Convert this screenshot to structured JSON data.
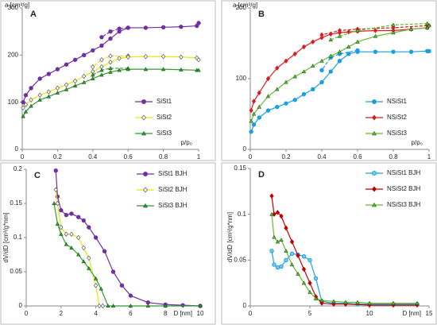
{
  "chart_data": [
    {
      "type": "line",
      "panel": "A",
      "ylabel": "a [cm³/g]",
      "xlabel": "p/p₀",
      "xlim": [
        0,
        1
      ],
      "xticks": [
        0,
        0.2,
        0.4,
        0.6,
        0.8,
        1
      ],
      "ylim": [
        0,
        300
      ],
      "yticks": [
        0,
        100,
        200,
        300
      ],
      "legend": "lower right",
      "series": [
        {
          "name": "SiSt1",
          "color": "#7030a0",
          "marker": "circle",
          "marker_fill": "#7030a0",
          "x": [
            0.005,
            0.02,
            0.05,
            0.1,
            0.15,
            0.2,
            0.25,
            0.3,
            0.35,
            0.4,
            0.45,
            0.5,
            0.55,
            0.6,
            0.7,
            0.8,
            0.9,
            0.99,
            1.0
          ],
          "values": [
            100,
            115,
            130,
            150,
            160,
            170,
            180,
            190,
            200,
            210,
            220,
            235,
            250,
            258,
            258,
            259,
            260,
            262,
            268
          ],
          "desorption": {
            "x": [
              0.6,
              0.55,
              0.5,
              0.45
            ],
            "values": [
              258,
              256,
              250,
              238
            ]
          }
        },
        {
          "name": "SiSt2",
          "color": "#e6e600",
          "marker": "diamond",
          "marker_fill": "#ffffff",
          "x": [
            0.005,
            0.02,
            0.05,
            0.1,
            0.15,
            0.2,
            0.25,
            0.3,
            0.35,
            0.4,
            0.45,
            0.5,
            0.55,
            0.6,
            0.7,
            0.8,
            0.9,
            0.99,
            1.0
          ],
          "values": [
            88,
            95,
            105,
            115,
            122,
            130,
            137,
            145,
            155,
            165,
            175,
            185,
            193,
            196,
            197,
            197,
            196,
            194,
            190
          ],
          "desorption": {
            "x": [
              0.6,
              0.5,
              0.45,
              0.4
            ],
            "values": [
              198,
              198,
              190,
              175
            ]
          }
        },
        {
          "name": "SiSt3",
          "color": "#339933",
          "marker": "triangle",
          "marker_fill": "#339933",
          "x": [
            0.005,
            0.02,
            0.05,
            0.1,
            0.15,
            0.2,
            0.25,
            0.3,
            0.35,
            0.4,
            0.45,
            0.5,
            0.55,
            0.6,
            0.7,
            0.8,
            0.9,
            0.99,
            1.0
          ],
          "values": [
            70,
            80,
            92,
            105,
            112,
            120,
            127,
            135,
            142,
            150,
            158,
            164,
            168,
            170,
            170,
            170,
            169,
            168,
            168
          ],
          "desorption": {
            "x": [
              0.6,
              0.5,
              0.45,
              0.4
            ],
            "values": [
              172,
              172,
              168,
              158
            ]
          }
        }
      ]
    },
    {
      "type": "line",
      "panel": "B",
      "ylabel": "a [cm³/g]",
      "xlabel": "p/p₀",
      "xlim": [
        0,
        1
      ],
      "xticks": [
        0,
        0.2,
        0.4,
        0.6,
        0.8,
        1
      ],
      "ylim": [
        0,
        200
      ],
      "yticks": [
        0,
        100,
        200
      ],
      "legend": "lower right",
      "series": [
        {
          "name": "NSiSt1",
          "color": "#1a9fdf",
          "marker": "circle",
          "marker_fill": "#1a9fdf",
          "x": [
            0.005,
            0.02,
            0.05,
            0.1,
            0.15,
            0.2,
            0.25,
            0.3,
            0.35,
            0.4,
            0.45,
            0.5,
            0.55,
            0.6,
            0.7,
            0.8,
            0.9,
            0.99,
            1.0
          ],
          "values": [
            25,
            35,
            45,
            55,
            60,
            65,
            70,
            78,
            85,
            95,
            110,
            125,
            135,
            138,
            138,
            138,
            138,
            139,
            139
          ],
          "desorption": {
            "x": [
              0.6,
              0.5,
              0.45,
              0.4
            ],
            "values": [
              140,
              135,
              130,
              112
            ]
          }
        },
        {
          "name": "NSiSt2",
          "color": "#d62020",
          "marker": "diamond",
          "marker_fill": "#d62020",
          "x": [
            0.005,
            0.02,
            0.05,
            0.1,
            0.15,
            0.2,
            0.25,
            0.3,
            0.35,
            0.4,
            0.45,
            0.5,
            0.55,
            0.6,
            0.7,
            0.8,
            0.9,
            0.99,
            1.0
          ],
          "values": [
            55,
            68,
            80,
            100,
            115,
            125,
            135,
            145,
            152,
            158,
            163,
            165,
            166,
            167,
            168,
            168,
            170,
            172,
            175
          ],
          "desorption": {
            "x": [
              0.99,
              0.8,
              0.6,
              0.5,
              0.4
            ],
            "values": [
              175,
              172,
              170,
              168,
              162
            ]
          }
        },
        {
          "name": "NSiSt3",
          "color": "#66bb33",
          "marker": "triangle",
          "marker_fill": "#66bb33",
          "x": [
            0.005,
            0.02,
            0.05,
            0.1,
            0.15,
            0.2,
            0.25,
            0.3,
            0.35,
            0.4,
            0.45,
            0.5,
            0.55,
            0.6,
            0.7,
            0.8,
            0.9,
            0.99,
            1.0
          ],
          "values": [
            40,
            50,
            60,
            75,
            85,
            95,
            103,
            110,
            118,
            125,
            132,
            138,
            145,
            152,
            160,
            165,
            170,
            172,
            175
          ],
          "desorption": {
            "x": [
              0.99,
              0.8,
              0.6,
              0.5,
              0.45
            ],
            "values": [
              178,
              176,
              168,
              160,
              155
            ]
          }
        }
      ]
    },
    {
      "type": "line",
      "panel": "C",
      "ylabel": "dV/dD [cm³/g*nm]",
      "xlabel": "D [nm]",
      "xlim": [
        0,
        10
      ],
      "xticks": [
        0,
        2,
        4,
        6,
        8,
        10
      ],
      "ylim": [
        0,
        0.2
      ],
      "yticks": [
        0,
        0.05,
        0.1,
        0.15,
        0.2
      ],
      "legend": "upper right",
      "series": [
        {
          "name": "SiSt1 BJH",
          "color": "#7030a0",
          "marker": "circle",
          "marker_fill": "#7030a0",
          "x": [
            1.7,
            1.8,
            2.0,
            2.3,
            2.6,
            3.0,
            3.3,
            3.6,
            4.0,
            4.5,
            5.0,
            5.5,
            6,
            7,
            8,
            9,
            10
          ],
          "values": [
            0.198,
            0.16,
            0.14,
            0.133,
            0.135,
            0.13,
            0.125,
            0.115,
            0.1,
            0.08,
            0.05,
            0.03,
            0.015,
            0.005,
            0.002,
            0.001,
            0
          ]
        },
        {
          "name": "SiSt2 BJH",
          "color": "#e6e600",
          "marker": "diamond",
          "marker_fill": "#ffffff",
          "x": [
            1.7,
            1.8,
            2.0,
            2.3,
            2.6,
            3.0,
            3.3,
            3.6,
            4.0,
            4.2,
            4.4
          ],
          "values": [
            0.17,
            0.15,
            0.115,
            0.105,
            0.105,
            0.1,
            0.085,
            0.07,
            0.03,
            0,
            0
          ]
        },
        {
          "name": "SiSt3 BJH",
          "color": "#339933",
          "marker": "triangle",
          "marker_fill": "#339933",
          "x": [
            1.6,
            1.8,
            2.0,
            2.3,
            2.6,
            3.0,
            3.3,
            3.6,
            4.0,
            4.3,
            4.7,
            5,
            6,
            7,
            8,
            10
          ],
          "values": [
            0.15,
            0.12,
            0.105,
            0.09,
            0.085,
            0.075,
            0.065,
            0.055,
            0.04,
            0.025,
            0,
            0,
            0,
            0,
            0,
            0
          ]
        }
      ]
    },
    {
      "type": "line",
      "panel": "D",
      "ylabel": "dV/dD [cm³/g*nm]",
      "xlabel": "D [nm]",
      "xlim": [
        0,
        15
      ],
      "xticks": [
        0,
        5,
        10,
        15
      ],
      "ylim": [
        0,
        0.15
      ],
      "yticks": [
        0,
        0.05,
        0.1,
        0.15
      ],
      "legend": "upper right",
      "series": [
        {
          "name": "NSiSt1 BJH",
          "color": "#1a9fdf",
          "marker": "circle",
          "marker_fill": "#7cc8ee",
          "x": [
            1.8,
            2.0,
            2.3,
            2.6,
            3.0,
            3.5,
            4,
            4.5,
            5,
            5.5,
            6,
            7,
            8,
            9,
            10,
            12,
            14
          ],
          "values": [
            0.06,
            0.045,
            0.042,
            0.043,
            0.05,
            0.057,
            0.056,
            0.054,
            0.05,
            0.03,
            0.005,
            0.003,
            0.003,
            0.002,
            0.002,
            0.002,
            0.002
          ]
        },
        {
          "name": "NSiSt2 BJH",
          "color": "#c00000",
          "marker": "diamond",
          "marker_fill": "#c00000",
          "x": [
            1.8,
            2.0,
            2.3,
            2.6,
            3.0,
            3.5,
            4,
            4.5,
            5,
            5.5,
            6,
            7,
            8,
            10,
            12,
            14
          ],
          "values": [
            0.12,
            0.1,
            0.102,
            0.098,
            0.085,
            0.07,
            0.055,
            0.04,
            0.025,
            0.01,
            0.003,
            0.002,
            0.002,
            0.001,
            0.001,
            0.001
          ]
        },
        {
          "name": "NSiSt3 BJH",
          "color": "#66bb33",
          "marker": "triangle",
          "marker_fill": "#66bb33",
          "x": [
            1.8,
            2.0,
            2.3,
            2.6,
            3.0,
            3.5,
            4,
            4.5,
            5,
            5.5,
            6,
            7,
            8,
            9,
            10,
            12,
            14
          ],
          "values": [
            0.1,
            0.075,
            0.07,
            0.072,
            0.06,
            0.045,
            0.035,
            0.025,
            0.015,
            0.008,
            0.006,
            0.005,
            0.004,
            0.004,
            0.003,
            0.003,
            0.003
          ]
        }
      ]
    }
  ]
}
